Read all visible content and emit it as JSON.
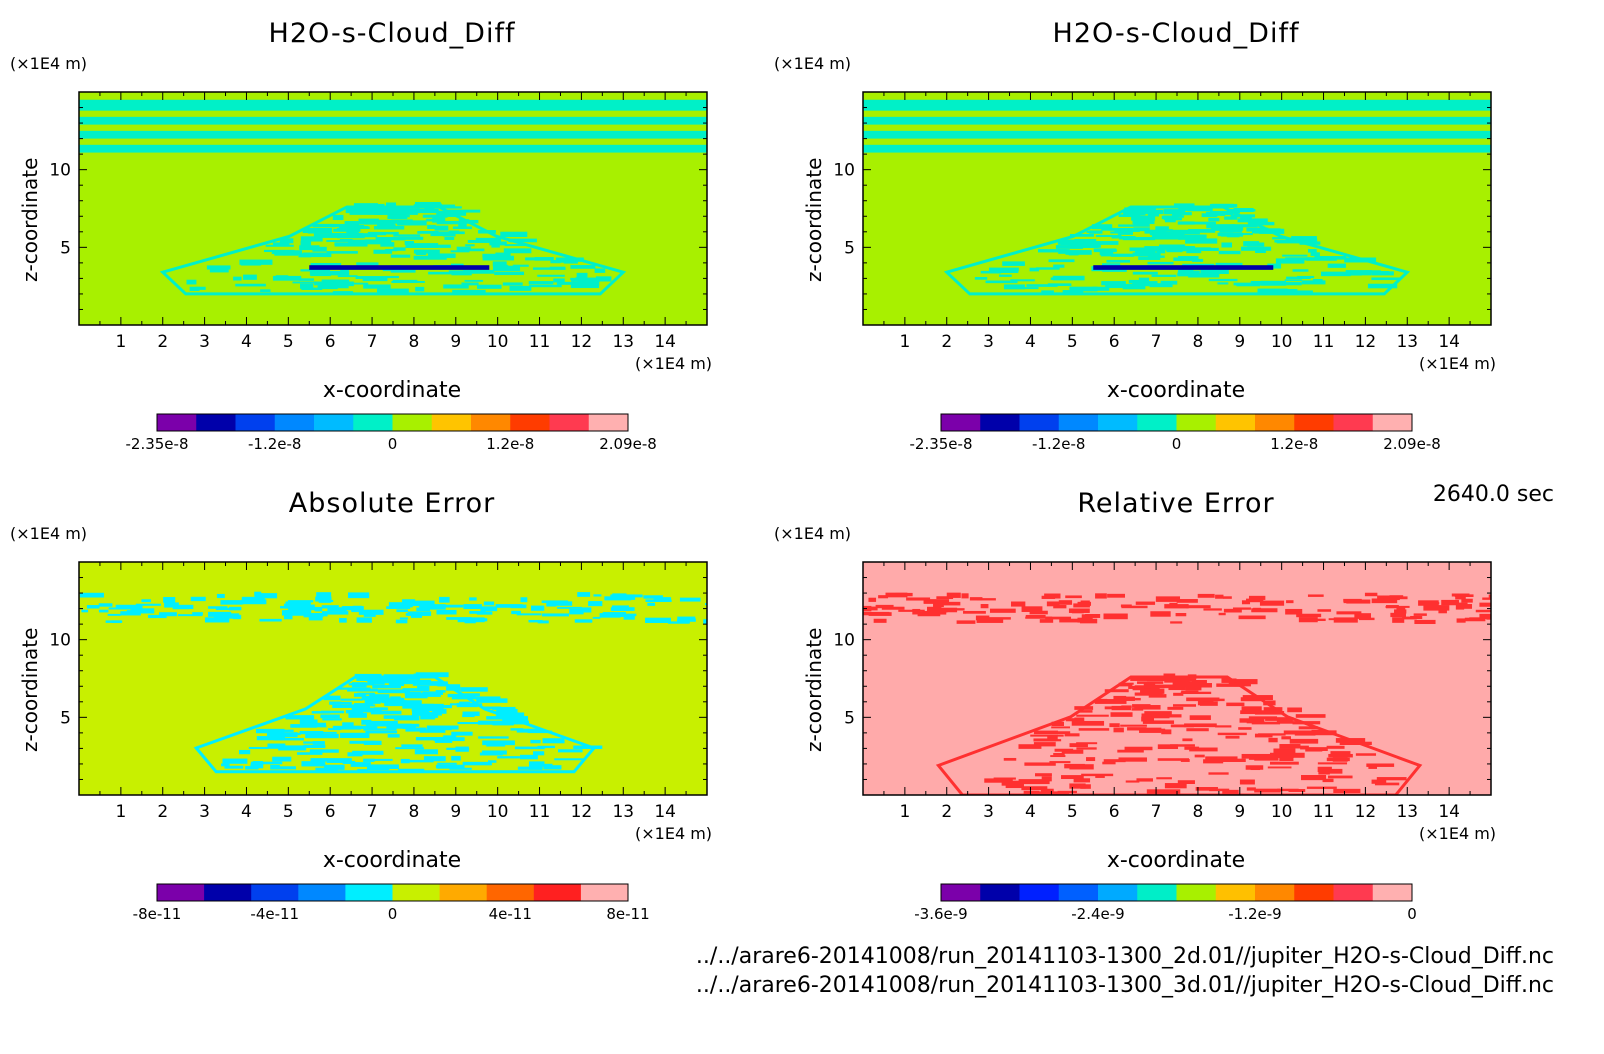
{
  "time_label": "2640.0 sec",
  "footer": [
    "../../arare6-20141008/run_20141103-1300_2d.01//jupiter_H2O-s-Cloud_Diff.nc",
    "../../arare6-20141008/run_20141103-1300_3d.01//jupiter_H2O-s-Cloud_Diff.nc"
  ],
  "chart_data": [
    {
      "type": "heatmap",
      "title": "H2O-s-Cloud_Diff",
      "xlabel": "x-coordinate",
      "ylabel": "z-coordinate",
      "x_unit": "(×1E4 m)",
      "y_unit": "(×1E4 m)",
      "xlim": [
        0,
        15
      ],
      "ylim": [
        0,
        15
      ],
      "x_ticks": [
        1,
        2,
        3,
        4,
        5,
        6,
        7,
        8,
        9,
        10,
        11,
        12,
        13,
        14
      ],
      "y_ticks": [
        5,
        10
      ],
      "background_color": "#a8f000",
      "colorbar": {
        "colors": [
          "#7b00aa",
          "#0000aa",
          "#0040ee",
          "#0088ff",
          "#00bbff",
          "#00f0c8",
          "#a8f000",
          "#ffc400",
          "#ff8800",
          "#ff3c00",
          "#ff3a50",
          "#ffb0b0"
        ],
        "tick_labels": [
          "-2.35e-8",
          "-1.2e-8",
          "0",
          "1.2e-8",
          "2.09e-8"
        ]
      },
      "features": [
        {
          "kind": "band",
          "z": [
            13.8,
            14.5
          ],
          "color": "#00f0c8"
        },
        {
          "kind": "band",
          "z": [
            12.9,
            13.4
          ],
          "color": "#00f0c8"
        },
        {
          "kind": "band",
          "z": [
            12.0,
            12.5
          ],
          "color": "#00f0c8"
        },
        {
          "kind": "band",
          "z": [
            11.1,
            11.6
          ],
          "color": "#00f0c8"
        },
        {
          "kind": "wedge",
          "x": [
            2.0,
            13.0
          ],
          "z": [
            2.0,
            7.6
          ],
          "color": "#00f0c8"
        },
        {
          "kind": "streak",
          "x": [
            5.5,
            9.8
          ],
          "z": 3.7,
          "color": "#0000aa"
        }
      ]
    },
    {
      "type": "heatmap",
      "title": "H2O-s-Cloud_Diff",
      "xlabel": "x-coordinate",
      "ylabel": "z-coordinate",
      "x_unit": "(×1E4 m)",
      "y_unit": "(×1E4 m)",
      "xlim": [
        0,
        15
      ],
      "ylim": [
        0,
        15
      ],
      "x_ticks": [
        1,
        2,
        3,
        4,
        5,
        6,
        7,
        8,
        9,
        10,
        11,
        12,
        13,
        14
      ],
      "y_ticks": [
        5,
        10
      ],
      "background_color": "#a8f000",
      "colorbar": {
        "colors": [
          "#7b00aa",
          "#0000aa",
          "#0040ee",
          "#0088ff",
          "#00bbff",
          "#00f0c8",
          "#a8f000",
          "#ffc400",
          "#ff8800",
          "#ff3c00",
          "#ff3a50",
          "#ffb0b0"
        ],
        "tick_labels": [
          "-2.35e-8",
          "-1.2e-8",
          "0",
          "1.2e-8",
          "2.09e-8"
        ]
      },
      "features": [
        {
          "kind": "band",
          "z": [
            13.8,
            14.5
          ],
          "color": "#00f0c8"
        },
        {
          "kind": "band",
          "z": [
            12.9,
            13.4
          ],
          "color": "#00f0c8"
        },
        {
          "kind": "band",
          "z": [
            12.0,
            12.5
          ],
          "color": "#00f0c8"
        },
        {
          "kind": "band",
          "z": [
            11.1,
            11.6
          ],
          "color": "#00f0c8"
        },
        {
          "kind": "wedge",
          "x": [
            2.0,
            13.0
          ],
          "z": [
            2.0,
            7.6
          ],
          "color": "#00f0c8"
        },
        {
          "kind": "streak",
          "x": [
            5.5,
            9.8
          ],
          "z": 3.7,
          "color": "#0000aa"
        }
      ]
    },
    {
      "type": "heatmap",
      "title": "Absolute Error",
      "xlabel": "x-coordinate",
      "ylabel": "z-coordinate",
      "x_unit": "(×1E4 m)",
      "y_unit": "(×1E4 m)",
      "xlim": [
        0,
        15
      ],
      "ylim": [
        0,
        15
      ],
      "x_ticks": [
        1,
        2,
        3,
        4,
        5,
        6,
        7,
        8,
        9,
        10,
        11,
        12,
        13,
        14
      ],
      "y_ticks": [
        5,
        10
      ],
      "background_color": "#c8f000",
      "colorbar": {
        "colors": [
          "#7b00aa",
          "#0000aa",
          "#0040ee",
          "#0088ff",
          "#00eeff",
          "#c8f000",
          "#ffaa00",
          "#ff6600",
          "#ff2020",
          "#ffb0b0"
        ],
        "tick_labels": [
          "-8e-11",
          "-4e-11",
          "0",
          "4e-11",
          "8e-11"
        ]
      },
      "features": [
        {
          "kind": "noise_band",
          "x": [
            0,
            15
          ],
          "z": [
            11.0,
            12.8
          ],
          "color": "#00eeff"
        },
        {
          "kind": "wedge",
          "x": [
            2.8,
            12.3
          ],
          "z": [
            1.5,
            7.6
          ],
          "color": "#00eeff"
        }
      ]
    },
    {
      "type": "heatmap",
      "title": "Relative Error",
      "xlabel": "x-coordinate",
      "ylabel": "z-coordinate",
      "x_unit": "(×1E4 m)",
      "y_unit": "(×1E4 m)",
      "xlim": [
        0,
        15
      ],
      "ylim": [
        0,
        15
      ],
      "x_ticks": [
        1,
        2,
        3,
        4,
        5,
        6,
        7,
        8,
        9,
        10,
        11,
        12,
        13,
        14
      ],
      "y_ticks": [
        5,
        10
      ],
      "background_color": "#ffaaaa",
      "colorbar": {
        "colors": [
          "#7b00aa",
          "#0000aa",
          "#0020ff",
          "#0060ff",
          "#00aaff",
          "#00eec8",
          "#a8f000",
          "#ffc000",
          "#ff8800",
          "#ff3c00",
          "#ff3a50",
          "#ffb0b0"
        ],
        "tick_labels": [
          "-3.6e-9",
          "-2.4e-9",
          "-1.2e-9",
          "0"
        ]
      },
      "features": [
        {
          "kind": "noise_band",
          "x": [
            0,
            15
          ],
          "z": [
            11.0,
            12.8
          ],
          "color": "#ff3030"
        },
        {
          "kind": "wedge",
          "x": [
            1.8,
            13.3
          ],
          "z": [
            0,
            7.6
          ],
          "color": "#ff3030"
        }
      ]
    }
  ]
}
